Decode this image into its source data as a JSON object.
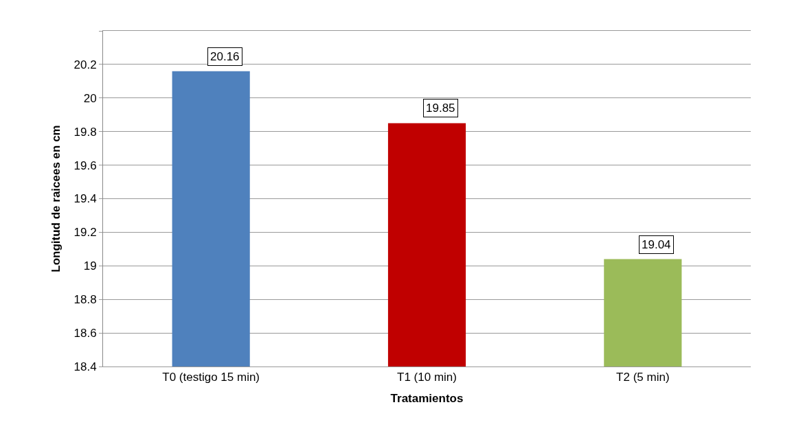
{
  "chart_data": {
    "type": "bar",
    "xlabel": "Tratamientos",
    "ylabel": "Longitud de raicees en cm",
    "categories": [
      "T0 (testigo 15 min)",
      "T1 (10 min)",
      "T2 (5 min)"
    ],
    "values": [
      20.16,
      19.85,
      19.04
    ],
    "colors": [
      "#4f81bd",
      "#c00000",
      "#9bbb59"
    ],
    "ylim": [
      18.4,
      20.4
    ],
    "yticks": [
      18.4,
      18.6,
      18.8,
      19,
      19.2,
      19.4,
      19.6,
      19.8,
      20,
      20.2,
      {
        "value": 20.4,
        "label": null
      }
    ],
    "grid": "y",
    "data_labels": true
  }
}
